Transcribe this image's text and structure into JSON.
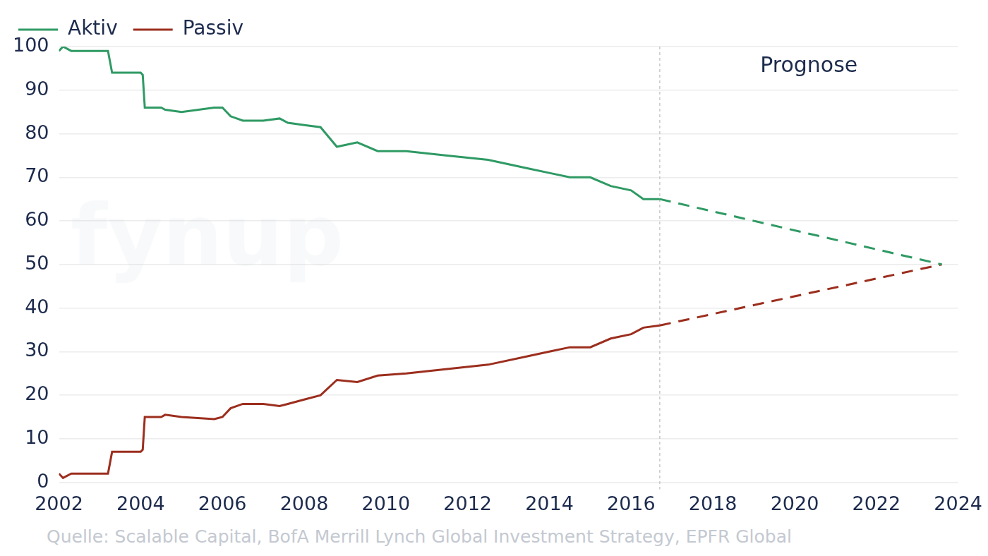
{
  "chart_data": {
    "type": "line",
    "x": [
      2002.0,
      2002.1,
      2002.3,
      2003.0,
      2003.2,
      2003.3,
      2004.0,
      2004.05,
      2004.1,
      2004.5,
      2004.6,
      2005.0,
      2005.8,
      2006.0,
      2006.2,
      2006.5,
      2007.0,
      2007.4,
      2007.6,
      2008.0,
      2008.4,
      2008.8,
      2009.3,
      2009.8,
      2010.5,
      2011.5,
      2012.5,
      2013.5,
      2014.0,
      2014.5,
      2015.0,
      2015.5,
      2016.0,
      2016.3,
      2016.7,
      2023.6
    ],
    "series": [
      {
        "name": "Aktiv",
        "color": "#2f9a64",
        "values": [
          99,
          100,
          99,
          99,
          99,
          94,
          94,
          93.5,
          86,
          86,
          85.5,
          85,
          86,
          86,
          84,
          83,
          83,
          83.5,
          82.5,
          82,
          81.5,
          77,
          78,
          76,
          76,
          75,
          74,
          72,
          71,
          70,
          70,
          68,
          67,
          65,
          65,
          50
        ]
      },
      {
        "name": "Passiv",
        "color": "#9c2e1e",
        "values": [
          2,
          1,
          2,
          2,
          2,
          7,
          7,
          7.5,
          15,
          15,
          15.5,
          15,
          14.5,
          15,
          17,
          18,
          18,
          17.5,
          18,
          19,
          20,
          23.5,
          23,
          24.5,
          25,
          26,
          27,
          29,
          30,
          31,
          31,
          33,
          34,
          35.5,
          36,
          50
        ]
      }
    ],
    "xlim": [
      2002,
      2024
    ],
    "xticks": [
      2002,
      2004,
      2006,
      2008,
      2010,
      2012,
      2014,
      2016,
      2018,
      2020,
      2022,
      2024
    ],
    "ylim": [
      0,
      100
    ],
    "yticks": [
      0,
      10,
      20,
      30,
      40,
      50,
      60,
      70,
      80,
      90,
      100
    ],
    "grid": true,
    "legend": "top-left",
    "annotations": [
      {
        "text": "Prognose",
        "x": 2016.7
      }
    ],
    "watermark": "fynup",
    "source": "Quelle: Scalable Capital, BofA Merrill Lynch Global Investment Strategy, EPFR Global"
  }
}
